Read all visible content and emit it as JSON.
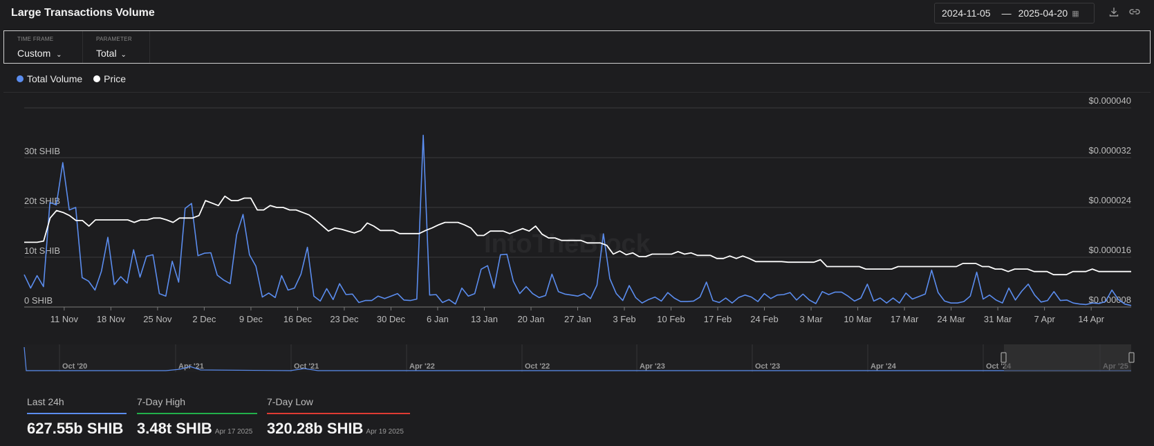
{
  "header": {
    "title": "Large Transactions Volume",
    "date_from": "2024-11-05",
    "date_sep": "—",
    "date_to": "2025-04-20",
    "icons": [
      "calendar-icon",
      "download-icon",
      "link-icon"
    ]
  },
  "filters": {
    "timeframe_label": "TIME FRAME",
    "timeframe_value": "Custom",
    "parameter_label": "PARAMETER",
    "parameter_value": "Total"
  },
  "legend": {
    "items": [
      {
        "label": "Total Volume",
        "color": "#5b8def"
      },
      {
        "label": "Price",
        "color": "#ffffff"
      }
    ]
  },
  "watermark": "IntoTheBlock",
  "chart_data": {
    "type": "line",
    "x_start": "2024-11-05",
    "x_end": "2025-04-20",
    "x_ticks": [
      "11 Nov",
      "18 Nov",
      "25 Nov",
      "2 Dec",
      "9 Dec",
      "16 Dec",
      "23 Dec",
      "30 Dec",
      "6 Jan",
      "13 Jan",
      "20 Jan",
      "27 Jan",
      "3 Feb",
      "10 Feb",
      "17 Feb",
      "24 Feb",
      "3 Mar",
      "10 Mar",
      "17 Mar",
      "24 Mar",
      "31 Mar",
      "7 Apr",
      "14 Apr"
    ],
    "left_axis": {
      "ticks": [
        "0 SHIB",
        "10t SHIB",
        "20t SHIB",
        "30t SHIB"
      ],
      "range": [
        0,
        40
      ],
      "unit": "t SHIB"
    },
    "right_axis": {
      "ticks": [
        "$0.000008",
        "$0.000016",
        "$0.000024",
        "$0.000032",
        "$0.000040"
      ],
      "range": [
        8e-06,
        4e-05
      ]
    },
    "grid": true,
    "legend_position": "top-left",
    "series": [
      {
        "name": "Total Volume",
        "color": "#5b8def",
        "axis": "left",
        "values": [
          6.5,
          3.8,
          6.3,
          4.1,
          21,
          20.5,
          29,
          19.5,
          20,
          5.9,
          5.2,
          3.4,
          7.2,
          14,
          4.5,
          6.1,
          4.8,
          11.5,
          6,
          10.2,
          10.5,
          2.7,
          2.2,
          9.2,
          5,
          19.8,
          20.8,
          10.3,
          10.8,
          10.9,
          6.4,
          5.4,
          4.7,
          14.5,
          18.6,
          10.5,
          8.2,
          2,
          2.8,
          1.9,
          6.3,
          3.4,
          3.8,
          6.6,
          12,
          2.2,
          1.2,
          3.7,
          1.5,
          4.7,
          2.5,
          2.6,
          0.9,
          1.3,
          1.3,
          2.2,
          1.7,
          2.2,
          2.7,
          1.4,
          1.3,
          1.6,
          34.5,
          2.4,
          2.5,
          0.9,
          1.5,
          0.6,
          3.8,
          2.2,
          2.7,
          7.6,
          8.3,
          3.8,
          10.5,
          10.6,
          5.2,
          2.7,
          4.1,
          2.7,
          1.9,
          2.3,
          6.6,
          3.1,
          2.6,
          2.4,
          2.2,
          2.7,
          1.7,
          4.4,
          14.7,
          5.7,
          2.7,
          1.3,
          4.3,
          1.9,
          0.8,
          1.5,
          2,
          1.2,
          2.9,
          1.8,
          1.1,
          1.1,
          1.2,
          2,
          5,
          1.3,
          0.9,
          1.8,
          0.8,
          1.9,
          2.4,
          2,
          1.1,
          2.7,
          1.7,
          2.4,
          2.5,
          2.9,
          1.4,
          2.6,
          1.4,
          0.7,
          3.1,
          2.5,
          3,
          3,
          2.2,
          1.2,
          1.8,
          4.6,
          1.2,
          1.8,
          0.8,
          1.8,
          0.8,
          2.8,
          1.6,
          2.1,
          2.6,
          7.4,
          2.9,
          1.2,
          0.8,
          0.8,
          1.1,
          2.2,
          7,
          1.6,
          2.4,
          1.4,
          0.8,
          3.8,
          1.4,
          3.2,
          4.6,
          2.4,
          1,
          1.3,
          3.1,
          1.3,
          1.4,
          0.8,
          0.6,
          0.5,
          0.8,
          0.7,
          1.1,
          3.4,
          1.5,
          0.6,
          0.3
        ]
      },
      {
        "name": "Price",
        "color": "#ffffff",
        "axis": "right",
        "values": [
          1.84e-05,
          1.84e-05,
          1.84e-05,
          1.86e-05,
          2.23e-05,
          2.35e-05,
          2.32e-05,
          2.27e-05,
          2.19e-05,
          2.19e-05,
          2.1e-05,
          2.2e-05,
          2.2e-05,
          2.2e-05,
          2.2e-05,
          2.2e-05,
          2.2e-05,
          2.16e-05,
          2.2e-05,
          2.2e-05,
          2.23e-05,
          2.23e-05,
          2.2e-05,
          2.16e-05,
          2.23e-05,
          2.23e-05,
          2.23e-05,
          2.27e-05,
          2.51e-05,
          2.47e-05,
          2.43e-05,
          2.58e-05,
          2.51e-05,
          2.51e-05,
          2.55e-05,
          2.55e-05,
          2.36e-05,
          2.36e-05,
          2.43e-05,
          2.4e-05,
          2.4e-05,
          2.36e-05,
          2.36e-05,
          2.32e-05,
          2.28e-05,
          2.2e-05,
          2.11e-05,
          2.02e-05,
          2.07e-05,
          2.05e-05,
          2.02e-05,
          1.99e-05,
          2.03e-05,
          2.15e-05,
          2.1e-05,
          2.03e-05,
          2.03e-05,
          2.03e-05,
          1.98e-05,
          1.98e-05,
          1.98e-05,
          1.98e-05,
          2.03e-05,
          2.07e-05,
          2.12e-05,
          2.16e-05,
          2.16e-05,
          2.16e-05,
          2.12e-05,
          2.07e-05,
          1.95e-05,
          1.95e-05,
          2.02e-05,
          2.02e-05,
          2.02e-05,
          1.98e-05,
          2.02e-05,
          2.06e-05,
          2.02e-05,
          2.1e-05,
          1.97e-05,
          1.91e-05,
          1.91e-05,
          1.87e-05,
          1.87e-05,
          1.87e-05,
          1.87e-05,
          1.83e-05,
          1.83e-05,
          1.83e-05,
          1.79e-05,
          1.65e-05,
          1.7e-05,
          1.64e-05,
          1.67e-05,
          1.61e-05,
          1.61e-05,
          1.65e-05,
          1.65e-05,
          1.65e-05,
          1.65e-05,
          1.69e-05,
          1.65e-05,
          1.67e-05,
          1.63e-05,
          1.63e-05,
          1.63e-05,
          1.58e-05,
          1.58e-05,
          1.62e-05,
          1.58e-05,
          1.62e-05,
          1.58e-05,
          1.53e-05,
          1.53e-05,
          1.53e-05,
          1.53e-05,
          1.53e-05,
          1.52e-05,
          1.52e-05,
          1.52e-05,
          1.52e-05,
          1.52e-05,
          1.56e-05,
          1.45e-05,
          1.45e-05,
          1.45e-05,
          1.45e-05,
          1.45e-05,
          1.45e-05,
          1.41e-05,
          1.41e-05,
          1.41e-05,
          1.41e-05,
          1.41e-05,
          1.45e-05,
          1.45e-05,
          1.45e-05,
          1.45e-05,
          1.45e-05,
          1.45e-05,
          1.45e-05,
          1.45e-05,
          1.45e-05,
          1.45e-05,
          1.5e-05,
          1.5e-05,
          1.5e-05,
          1.45e-05,
          1.45e-05,
          1.41e-05,
          1.41e-05,
          1.37e-05,
          1.41e-05,
          1.41e-05,
          1.41e-05,
          1.37e-05,
          1.37e-05,
          1.37e-05,
          1.32e-05,
          1.32e-05,
          1.32e-05,
          1.37e-05,
          1.37e-05,
          1.37e-05,
          1.41e-05,
          1.37e-05,
          1.37e-05,
          1.37e-05,
          1.37e-05,
          1.37e-05,
          1.37e-05
        ]
      }
    ]
  },
  "navigator": {
    "labels": [
      "Oct '20",
      "Apr '21",
      "Oct '21",
      "Apr '22",
      "Oct '22",
      "Apr '23",
      "Oct '23",
      "Apr '24",
      "Oct '24",
      "Apr '25"
    ]
  },
  "stats": [
    {
      "label": "Last 24h",
      "value": "627.55b SHIB",
      "date": "",
      "color": "#5b8def"
    },
    {
      "label": "7-Day High",
      "value": "3.48t SHIB",
      "date": "Apr 17 2025",
      "color": "#22b04b"
    },
    {
      "label": "7-Day Low",
      "value": "320.28b SHIB",
      "date": "Apr 19 2025",
      "color": "#e03b33"
    }
  ]
}
